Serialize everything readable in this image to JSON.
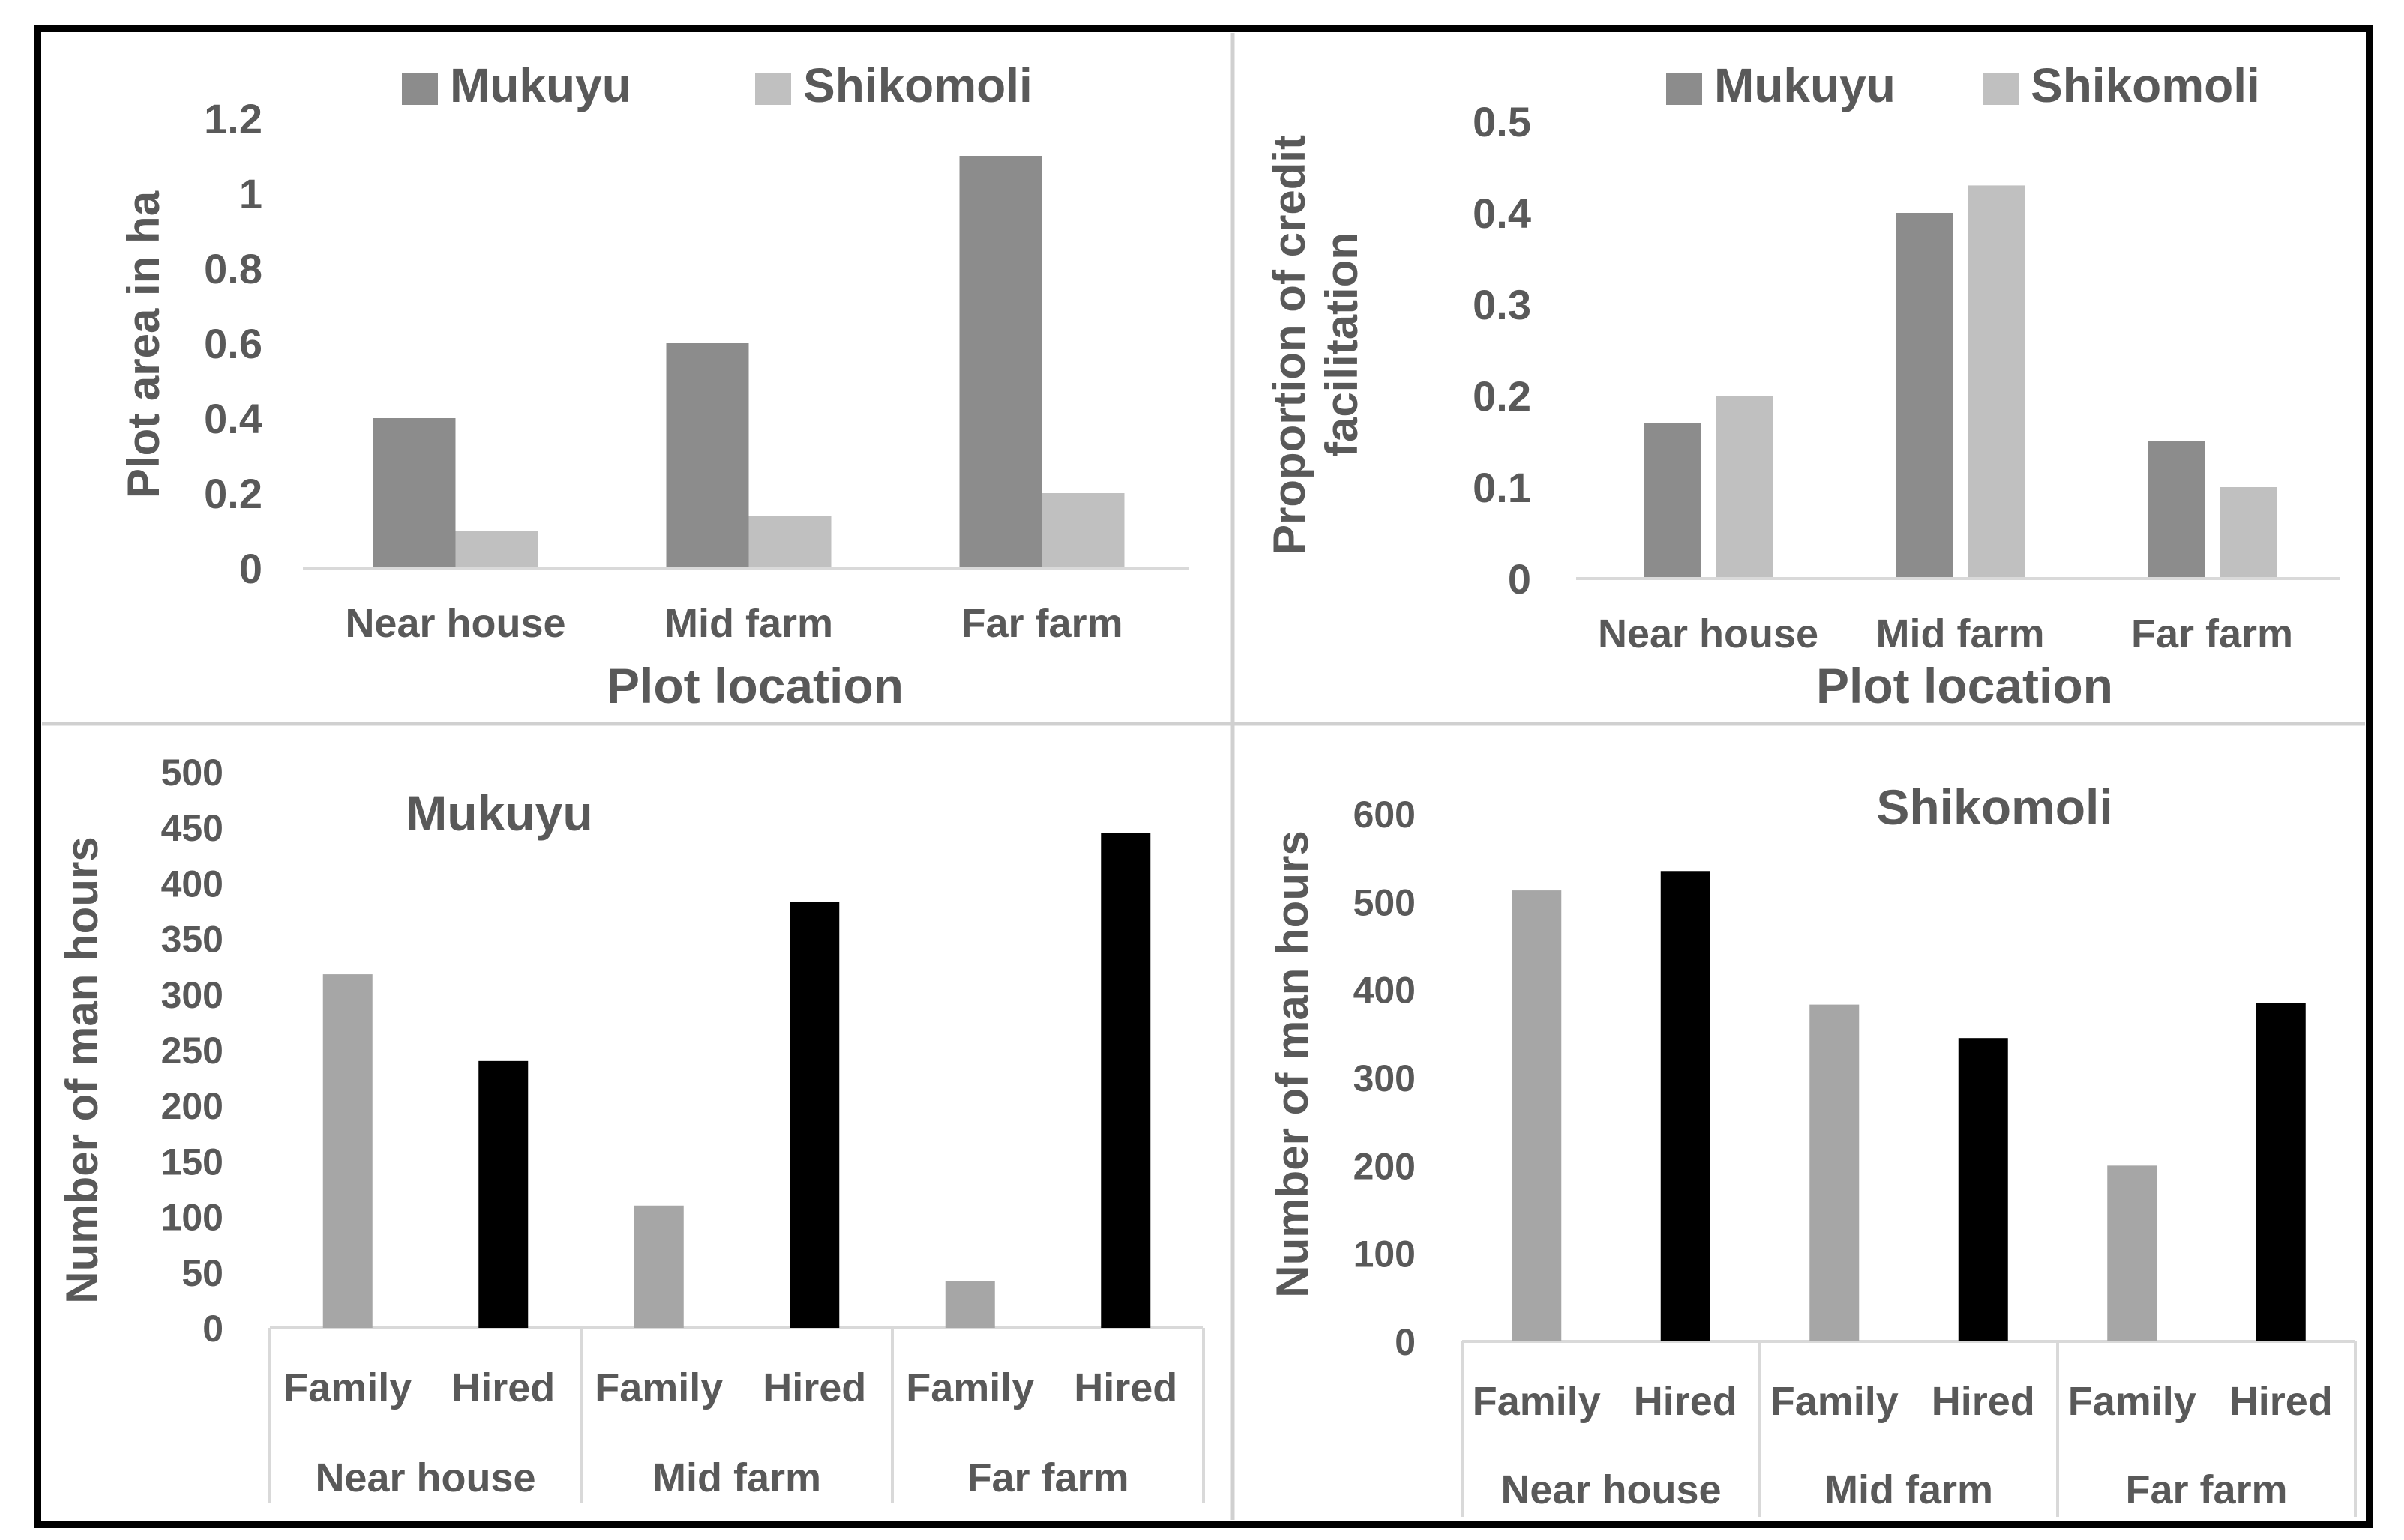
{
  "colors": {
    "mukuyu": "#8c8c8c",
    "shikomoli": "#c0c0c0",
    "family": "#a6a6a6",
    "hired": "#000000",
    "text": "#595959",
    "axis": "#d9d9d9",
    "frame": "#000000",
    "divider": "#d0d0d0"
  },
  "chart_data": [
    {
      "type": "bar",
      "id": "plot-area",
      "title": "",
      "xlabel": "Plot location",
      "ylabel": "Plot area in ha",
      "categories": [
        "Near house",
        "Mid farm",
        "Far farm"
      ],
      "ylim": [
        0,
        1.2
      ],
      "yticks": [
        "0",
        "0.2",
        "0.4",
        "0.6",
        "0.8",
        "1",
        "1.2"
      ],
      "legend_position": "top",
      "series": [
        {
          "name": "Mukuyu",
          "values": [
            0.4,
            0.6,
            1.1
          ]
        },
        {
          "name": "Shikomoli",
          "values": [
            0.1,
            0.14,
            0.2
          ]
        }
      ]
    },
    {
      "type": "bar",
      "id": "credit",
      "title": "",
      "xlabel": "Plot location",
      "ylabel": "Proportion of credit facilitation",
      "ylabel_lines": [
        "Proportion of credit",
        "facilitation"
      ],
      "categories": [
        "Near house",
        "Mid farm",
        "Far farm"
      ],
      "ylim": [
        0,
        0.5
      ],
      "yticks": [
        "0",
        "0.1",
        "0.2",
        "0.3",
        "0.4",
        "0.5"
      ],
      "legend_position": "top",
      "series": [
        {
          "name": "Mukuyu",
          "values": [
            0.17,
            0.4,
            0.15
          ]
        },
        {
          "name": "Shikomoli",
          "values": [
            0.2,
            0.43,
            0.1
          ]
        }
      ]
    },
    {
      "type": "bar",
      "id": "mukuyu-hours",
      "title": "Mukuyu",
      "xlabel": "",
      "ylabel": "Number of man hours",
      "groups": [
        "Near house",
        "Mid farm",
        "Far farm"
      ],
      "subcategories": [
        "Family",
        "Hired"
      ],
      "ylim": [
        0,
        500
      ],
      "yticks": [
        "0",
        "50",
        "100",
        "150",
        "200",
        "250",
        "300",
        "350",
        "400",
        "450",
        "500"
      ],
      "values": [
        [
          318,
          240
        ],
        [
          110,
          383
        ],
        [
          42,
          445
        ]
      ]
    },
    {
      "type": "bar",
      "id": "shikomoli-hours",
      "title": "Shikomoli",
      "xlabel": "",
      "ylabel": "Number of man hours",
      "groups": [
        "Near house",
        "Mid farm",
        "Far farm"
      ],
      "subcategories": [
        "Family",
        "Hired"
      ],
      "ylim": [
        0,
        600
      ],
      "yticks": [
        "0",
        "100",
        "200",
        "300",
        "400",
        "500",
        "600"
      ],
      "values": [
        [
          513,
          535
        ],
        [
          383,
          345
        ],
        [
          200,
          385
        ]
      ]
    }
  ]
}
